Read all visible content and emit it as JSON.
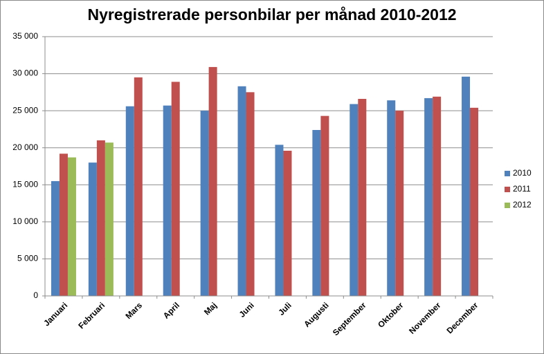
{
  "chart_data": {
    "type": "bar",
    "title": "Nyregistrerade personbilar per månad 2010-2012",
    "categories": [
      "Januari",
      "Februari",
      "Mars",
      "April",
      "Maj",
      "Juni",
      "Juli",
      "Augusti",
      "September",
      "Oktober",
      "November",
      "December"
    ],
    "series": [
      {
        "name": "2010",
        "color": "#4f81bd",
        "values": [
          15500,
          18000,
          25600,
          25700,
          25000,
          28300,
          20400,
          22400,
          25900,
          26400,
          26700,
          29600
        ]
      },
      {
        "name": "2011",
        "color": "#c0504d",
        "values": [
          19200,
          21000,
          29500,
          28900,
          30900,
          27500,
          19600,
          24300,
          26600,
          25000,
          26900,
          25400
        ]
      },
      {
        "name": "2012",
        "color": "#9bbb59",
        "values": [
          18700,
          20700,
          null,
          null,
          null,
          null,
          null,
          null,
          null,
          null,
          null,
          null
        ]
      }
    ],
    "ylim": [
      0,
      35000
    ],
    "yticks": [
      {
        "value": 0,
        "label": "0"
      },
      {
        "value": 5000,
        "label": "5 000"
      },
      {
        "value": 10000,
        "label": "10 000"
      },
      {
        "value": 15000,
        "label": "15 000"
      },
      {
        "value": 20000,
        "label": "20 000"
      },
      {
        "value": 25000,
        "label": "25 000"
      },
      {
        "value": 30000,
        "label": "30 000"
      },
      {
        "value": 35000,
        "label": "35 000"
      }
    ],
    "grid": true,
    "legend": "right"
  }
}
